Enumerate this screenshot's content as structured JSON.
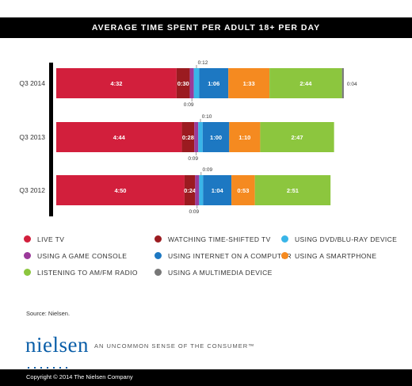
{
  "chart_data": {
    "type": "bar",
    "orientation": "horizontal",
    "stacked": true,
    "title": "AVERAGE TIME SPENT PER ADULT 18+ PER DAY",
    "categories": [
      "Q3 2014",
      "Q3 2013",
      "Q3 2012"
    ],
    "series": [
      {
        "name": "LIVE TV",
        "color": "#d21f3c",
        "values": [
          4.5333,
          4.7333,
          4.8333
        ],
        "labels": [
          "4:32",
          "4:44",
          "4:50"
        ],
        "label_position": "inside"
      },
      {
        "name": "WATCHING TIME-SHIFTED TV",
        "color": "#9b1b20",
        "values": [
          0.5,
          0.4667,
          0.4
        ],
        "labels": [
          "0:30",
          "0:28",
          "0:24"
        ],
        "label_position": "inside"
      },
      {
        "name": "USING A GAME CONSOLE",
        "color": "#9b3a9a",
        "values": [
          0.15,
          0.15,
          0.15
        ],
        "labels": [
          "0:09",
          "0:09",
          "0:09"
        ],
        "label_position": "below"
      },
      {
        "name": "USING DVD/BLU-RAY DEVICE",
        "color": "#39b5e8",
        "values": [
          0.2,
          0.1667,
          0.15
        ],
        "labels": [
          "0:12",
          "0:10",
          "0:09"
        ],
        "label_position": "above"
      },
      {
        "name": "USING INTERNET ON A COMPUTER",
        "color": "#1d78c2",
        "values": [
          1.1,
          1.0,
          1.0667
        ],
        "labels": [
          "1:06",
          "1:00",
          "1:04"
        ],
        "label_position": "inside"
      },
      {
        "name": "USING A SMARTPHONE",
        "color": "#f58a20",
        "values": [
          1.55,
          1.1667,
          0.8833
        ],
        "labels": [
          "1:33",
          "1:10",
          "0:53"
        ],
        "label_position": "inside"
      },
      {
        "name": "LISTENING TO AM/FM RADIO",
        "color": "#8cc63e",
        "values": [
          2.7333,
          2.7833,
          2.85
        ],
        "labels": [
          "2:44",
          "2:47",
          "2:51"
        ],
        "label_position": "inside"
      },
      {
        "name": "USING A MULTIMEDIA DEVICE",
        "color": "#777777",
        "values": [
          0.0667,
          0,
          0
        ],
        "labels": [
          "0:04",
          "",
          ""
        ],
        "label_position": "right"
      }
    ],
    "xlim": [
      0,
      11.1
    ],
    "grid": false,
    "legend_placement": "bottom"
  },
  "legend": [
    {
      "label": "LIVE TV",
      "color": "#d21f3c"
    },
    {
      "label": "WATCHING TIME-SHIFTED TV",
      "color": "#9b1b20"
    },
    {
      "label": "USING DVD/BLU-RAY DEVICE",
      "color": "#39b5e8"
    },
    {
      "label": "USING A GAME CONSOLE",
      "color": "#9b3a9a"
    },
    {
      "label": "USING INTERNET ON A COMPUTER",
      "color": "#1d78c2"
    },
    {
      "label": "USING A SMARTPHONE",
      "color": "#f58a20"
    },
    {
      "label": "LISTENING TO AM/FM RADIO",
      "color": "#8cc63e"
    },
    {
      "label": "USING A MULTIMEDIA DEVICE",
      "color": "#777777"
    }
  ],
  "source": "Source: Nielsen.",
  "brand": {
    "logo": "nielsen",
    "tagline": "AN UNCOMMON SENSE OF THE CONSUMER™"
  },
  "footer": {
    "copyright": "Copyright © 2014 The Nielsen Company"
  }
}
